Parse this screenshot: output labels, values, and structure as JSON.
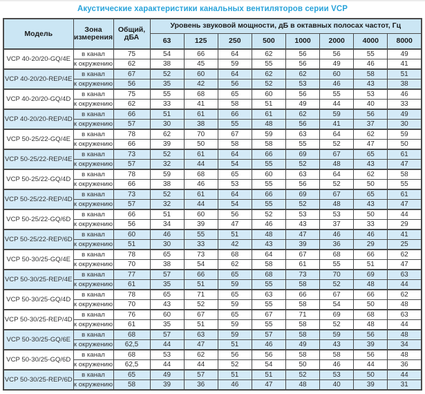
{
  "title": "Акустические характеристики канальных вентиляторов  серии VCP",
  "colors": {
    "title_blue": "#29a3da",
    "header_fill": "#cbe6f4",
    "shaded_row_fill": "#d4eaf7",
    "border": "#4a4a4a"
  },
  "table": {
    "headers": {
      "model": "Модель",
      "zone": "Зона измерения",
      "overall": "Общий, дБА",
      "spl_group": "Уровень звуковой мощности, дБ в октавных полосах частот, Гц",
      "frequencies": [
        "63",
        "125",
        "250",
        "500",
        "1000",
        "2000",
        "4000",
        "8000"
      ]
    },
    "zone_labels": [
      "в канал",
      "к окружению"
    ],
    "rows": [
      {
        "model": "VCP 40-20/20-GQ/4E",
        "shaded": false,
        "in_duct": {
          "total": "75",
          "bands": [
            54,
            66,
            64,
            62,
            56,
            56,
            55,
            49
          ]
        },
        "to_ambient": {
          "total": "62",
          "bands": [
            38,
            45,
            59,
            55,
            56,
            49,
            46,
            41
          ]
        }
      },
      {
        "model": "VCP 40-20/20-REP/4E",
        "shaded": true,
        "in_duct": {
          "total": "67",
          "bands": [
            52,
            60,
            64,
            62,
            62,
            60,
            58,
            51
          ]
        },
        "to_ambient": {
          "total": "56",
          "bands": [
            35,
            42,
            56,
            52,
            53,
            46,
            43,
            38
          ]
        }
      },
      {
        "model": "VCP 40-20/20-GQ/4D",
        "shaded": false,
        "in_duct": {
          "total": "75",
          "bands": [
            55,
            68,
            65,
            60,
            56,
            55,
            53,
            46
          ]
        },
        "to_ambient": {
          "total": "62",
          "bands": [
            33,
            41,
            58,
            51,
            49,
            44,
            40,
            33
          ]
        }
      },
      {
        "model": "VCP 40-20/20-REP/4D",
        "shaded": true,
        "in_duct": {
          "total": "66",
          "bands": [
            51,
            61,
            66,
            61,
            62,
            59,
            56,
            49
          ]
        },
        "to_ambient": {
          "total": "57",
          "bands": [
            30,
            38,
            55,
            48,
            56,
            41,
            37,
            30
          ]
        }
      },
      {
        "model": "VCP 50-25/22-GQ/4E",
        "shaded": false,
        "in_duct": {
          "total": "78",
          "bands": [
            62,
            70,
            67,
            59,
            63,
            64,
            62,
            59
          ]
        },
        "to_ambient": {
          "total": "66",
          "bands": [
            39,
            50,
            58,
            58,
            55,
            52,
            47,
            50
          ]
        }
      },
      {
        "model": "VCP 50-25/22-REP/4E",
        "shaded": true,
        "in_duct": {
          "total": "73",
          "bands": [
            52,
            61,
            64,
            66,
            69,
            67,
            65,
            61
          ]
        },
        "to_ambient": {
          "total": "57",
          "bands": [
            32,
            44,
            54,
            55,
            52,
            48,
            43,
            47
          ]
        }
      },
      {
        "model": "VCP 50-25/22-GQ/4D",
        "shaded": false,
        "in_duct": {
          "total": "78",
          "bands": [
            59,
            68,
            65,
            60,
            63,
            64,
            62,
            58
          ]
        },
        "to_ambient": {
          "total": "66",
          "bands": [
            38,
            46,
            53,
            55,
            56,
            52,
            50,
            55
          ]
        }
      },
      {
        "model": "VCP 50-25/22-REP/4D",
        "shaded": true,
        "in_duct": {
          "total": "73",
          "bands": [
            52,
            61,
            64,
            66,
            69,
            67,
            65,
            61
          ]
        },
        "to_ambient": {
          "total": "57",
          "bands": [
            32,
            44,
            54,
            55,
            52,
            48,
            43,
            47
          ]
        }
      },
      {
        "model": "VCP 50-25/22-GQ/6D",
        "shaded": false,
        "in_duct": {
          "total": "66",
          "bands": [
            51,
            60,
            56,
            52,
            53,
            53,
            50,
            44
          ]
        },
        "to_ambient": {
          "total": "56",
          "bands": [
            34,
            39,
            47,
            46,
            43,
            37,
            33,
            29
          ]
        }
      },
      {
        "model": "VCP 50-25/22-REP/6D",
        "shaded": true,
        "in_duct": {
          "total": "60",
          "bands": [
            46,
            55,
            51,
            48,
            47,
            46,
            46,
            41
          ]
        },
        "to_ambient": {
          "total": "51",
          "bands": [
            30,
            33,
            42,
            43,
            39,
            36,
            29,
            25
          ]
        }
      },
      {
        "model": "VCP 50-30/25-GQ/4E",
        "shaded": false,
        "in_duct": {
          "total": "78",
          "bands": [
            65,
            73,
            68,
            64,
            67,
            68,
            66,
            62
          ]
        },
        "to_ambient": {
          "total": "70",
          "bands": [
            38,
            54,
            62,
            58,
            61,
            55,
            51,
            47
          ]
        }
      },
      {
        "model": "VCP 50-30/25-REP/4E",
        "shaded": true,
        "in_duct": {
          "total": "77",
          "bands": [
            57,
            66,
            65,
            68,
            73,
            70,
            69,
            63
          ]
        },
        "to_ambient": {
          "total": "61",
          "bands": [
            35,
            51,
            59,
            55,
            58,
            52,
            48,
            44
          ]
        }
      },
      {
        "model": "VCP 50-30/25-GQ/4D",
        "shaded": false,
        "in_duct": {
          "total": "78",
          "bands": [
            65,
            71,
            65,
            63,
            66,
            67,
            66,
            62
          ]
        },
        "to_ambient": {
          "total": "70",
          "bands": [
            43,
            52,
            59,
            55,
            58,
            54,
            50,
            48
          ]
        }
      },
      {
        "model": "VCP 50-30/25-REP/4D",
        "shaded": false,
        "in_duct": {
          "total": "76",
          "bands": [
            60,
            67,
            65,
            67,
            71,
            69,
            68,
            63
          ]
        },
        "to_ambient": {
          "total": "61",
          "bands": [
            35,
            51,
            59,
            55,
            58,
            52,
            48,
            44
          ]
        }
      },
      {
        "model": "VCP 50-30/25-GQ/6E",
        "shaded": true,
        "in_duct": {
          "total": "68",
          "bands": [
            57,
            63,
            59,
            57,
            58,
            59,
            56,
            48
          ]
        },
        "to_ambient": {
          "total": "62,5",
          "bands": [
            44,
            47,
            51,
            46,
            49,
            43,
            39,
            34
          ]
        }
      },
      {
        "model": "VCP 50-30/25-GQ/6D",
        "shaded": false,
        "in_duct": {
          "total": "68",
          "bands": [
            53,
            62,
            56,
            56,
            58,
            58,
            56,
            48
          ]
        },
        "to_ambient": {
          "total": "62,5",
          "bands": [
            44,
            44,
            52,
            54,
            50,
            46,
            44,
            36
          ]
        }
      },
      {
        "model": "VCP 50-30/25-REP/6D",
        "shaded": true,
        "in_duct": {
          "total": "65",
          "bands": [
            49,
            57,
            51,
            51,
            52,
            53,
            50,
            44
          ]
        },
        "to_ambient": {
          "total": "58",
          "bands": [
            39,
            36,
            46,
            47,
            48,
            40,
            39,
            31
          ]
        }
      }
    ]
  }
}
